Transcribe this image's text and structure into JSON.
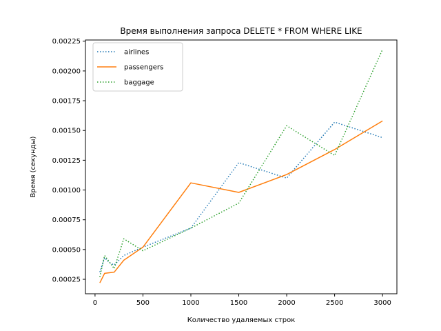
{
  "chart_data": {
    "type": "line",
    "title": "Время выполнения запроса DELETE * FROM WHERE LIKE",
    "xlabel": "Количество удаляемых строк",
    "ylabel": "Время (секунды)",
    "xlim": [
      -100,
      3150
    ],
    "ylim": [
      0.0001285,
      0.00226
    ],
    "xticks": [
      0,
      500,
      1000,
      1500,
      2000,
      2500,
      3000
    ],
    "yticks": [
      0.00025,
      0.0005,
      0.00075,
      0.001,
      0.00125,
      0.0015,
      0.00175,
      0.002,
      0.00225
    ],
    "xtick_labels": [
      "0",
      "500",
      "1000",
      "1500",
      "2000",
      "2500",
      "3000"
    ],
    "ytick_labels": [
      "0.00025",
      "0.00050",
      "0.00075",
      "0.00100",
      "0.00125",
      "0.00150",
      "0.00175",
      "0.00200",
      "0.00225"
    ],
    "grid": false,
    "legend_position": "top-left",
    "series": [
      {
        "name": "airlines",
        "color": "#1f77b4",
        "linestyle": "dotted",
        "x": [
          50,
          100,
          150,
          200,
          300,
          500,
          1000,
          1500,
          2000,
          2500,
          3000
        ],
        "y": [
          0.00031,
          0.00043,
          0.00039,
          0.00037,
          0.00045,
          0.00052,
          0.00068,
          0.00123,
          0.0011,
          0.00157,
          0.00144
        ]
      },
      {
        "name": "passengers",
        "color": "#ff7f0e",
        "linestyle": "solid",
        "x": [
          50,
          100,
          200,
          300,
          500,
          1000,
          1500,
          2000,
          2500,
          3000
        ],
        "y": [
          0.00022,
          0.0003,
          0.00031,
          0.00041,
          0.00052,
          0.00106,
          0.00098,
          0.00113,
          0.00134,
          0.00158
        ]
      },
      {
        "name": "baggage",
        "color": "#2ca02c",
        "linestyle": "dotted",
        "x": [
          50,
          100,
          200,
          300,
          500,
          1000,
          1500,
          2000,
          2500,
          3000
        ],
        "y": [
          0.00027,
          0.00045,
          0.00034,
          0.00059,
          0.00049,
          0.00068,
          0.00089,
          0.00154,
          0.00129,
          0.00218
        ]
      }
    ]
  }
}
